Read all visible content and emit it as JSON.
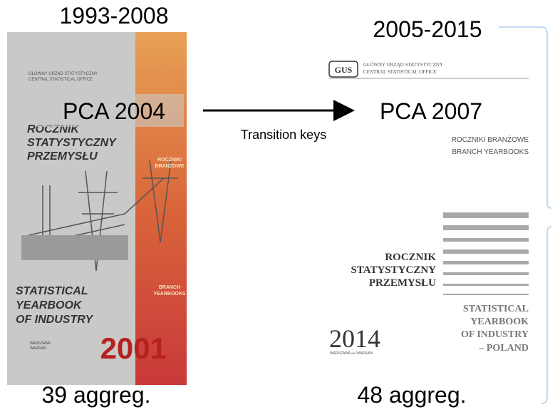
{
  "header": {
    "left_period": "1993-2008",
    "right_period": "2005-2015"
  },
  "transition": {
    "from": "PCA 2004",
    "to": "PCA 2007",
    "label": "Transition keys"
  },
  "footer": {
    "left_count": "39 aggreg.",
    "right_count": "48 aggreg."
  },
  "left_cover": {
    "office": [
      "GŁÓWNY URZĄD STATYSTYCZNY",
      "CENTRAL STATISTICAL OFFICE"
    ],
    "title_pl": [
      "ROCZNIK",
      "STATYSTYCZNY",
      "PRZEMYSŁU"
    ],
    "title_en": [
      "STATISTICAL",
      "YEARBOOK",
      "OF INDUSTRY"
    ],
    "series_pl": [
      "ROCZNIKI",
      "BRANŻOWE"
    ],
    "series_en": [
      "BRANCH",
      "YEARBOOKS"
    ],
    "year": "2001",
    "place": [
      "WARSZAWA",
      "WARSAW"
    ]
  },
  "right_cover": {
    "logo": "GUS",
    "office": [
      "GŁÓWNY URZĄD STATYSTYCZNY",
      "CENTRAL STATISTICAL OFFICE"
    ],
    "series": [
      "ROCZNIKI BRANŻOWE",
      "BRANCH YEARBOOKS"
    ],
    "title_pl": [
      "ROCZNIK",
      "STATYSTYCZNY",
      "PRZEMYSŁU"
    ],
    "title_en": [
      "STATISTICAL",
      "YEARBOOK",
      "OF INDUSTRY",
      "– POLAND"
    ],
    "year": "2014",
    "place": "WARSZAWA ━━ WARSAW"
  }
}
